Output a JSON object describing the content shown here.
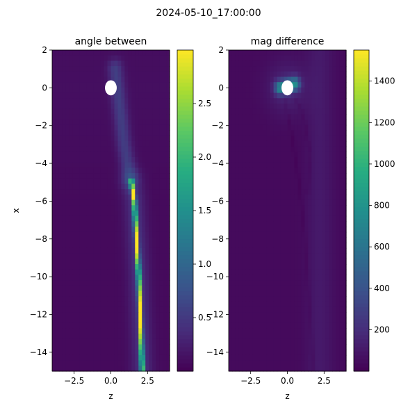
{
  "figure": {
    "suptitle": "2024-05-10_17:00:00"
  },
  "chart_data": [
    {
      "type": "heatmap",
      "title": "angle between",
      "xlabel": "z",
      "ylabel": "x",
      "xlim": [
        -4,
        4
      ],
      "ylim": [
        -15,
        2
      ],
      "xticks": [
        -2.5,
        0.0,
        2.5
      ],
      "xtick_labels": [
        "−2.5",
        "0.0",
        "2.5"
      ],
      "yticks": [
        2,
        0,
        -2,
        -4,
        -6,
        -8,
        -10,
        -12,
        -14
      ],
      "ytick_labels": [
        "2",
        "0",
        "−2",
        "−4",
        "−6",
        "−8",
        "−10",
        "−12",
        "−14"
      ],
      "colormap": "viridis",
      "colorbar": {
        "range": [
          0,
          3.0
        ],
        "ticks": [
          0.5,
          1.0,
          1.5,
          2.0,
          2.5
        ],
        "tick_labels": [
          "0.5",
          "1.0",
          "1.5",
          "2.0",
          "2.5"
        ]
      },
      "masked_region": {
        "center": [
          0.0,
          0.0
        ],
        "radius": 0.4
      },
      "features": [
        {
          "kind": "ridge",
          "points": [
            [
              1.4,
              -5.0
            ],
            [
              1.6,
              -6.0
            ],
            [
              1.75,
              -8.0
            ],
            [
              1.9,
              -10.0
            ],
            [
              2.0,
              -12.0
            ],
            [
              2.1,
              -14.0
            ],
            [
              2.15,
              -15.0
            ]
          ],
          "value": 2.8
        },
        {
          "kind": "diffuse-band",
          "points": [
            [
              0.3,
              1.0
            ],
            [
              0.9,
              -3.0
            ],
            [
              1.3,
              -4.8
            ]
          ],
          "value": 0.9
        }
      ]
    },
    {
      "type": "heatmap",
      "title": "mag difference",
      "xlabel": "z",
      "ylabel": "",
      "xlim": [
        -4,
        4
      ],
      "ylim": [
        -15,
        2
      ],
      "xticks": [
        -2.5,
        0.0,
        2.5
      ],
      "xtick_labels": [
        "−2.5",
        "0.0",
        "2.5"
      ],
      "yticks": [
        2,
        0,
        -2,
        -4,
        -6,
        -8,
        -10,
        -12,
        -14
      ],
      "ytick_labels": [
        "2",
        "0",
        "−2",
        "−4",
        "−6",
        "−8",
        "−10",
        "−12",
        "−14"
      ],
      "colormap": "viridis",
      "colorbar": {
        "range": [
          0,
          1550
        ],
        "ticks": [
          200,
          400,
          600,
          800,
          1000,
          1200,
          1400
        ],
        "tick_labels": [
          "200",
          "400",
          "600",
          "800",
          "1000",
          "1200",
          "1400"
        ]
      },
      "masked_region": {
        "center": [
          0.0,
          0.0
        ],
        "radius": 0.4
      },
      "features": [
        {
          "kind": "hotspot",
          "points": [
            [
              -0.5,
              0.0
            ],
            [
              0.5,
              0.2
            ]
          ],
          "value": 1000
        },
        {
          "kind": "dark-line",
          "points": [
            [
              -0.2,
              -0.5
            ],
            [
              0.3,
              -2.5
            ],
            [
              0.8,
              -5.0
            ],
            [
              1.2,
              -8.0
            ],
            [
              1.8,
              -15.0
            ]
          ],
          "value": 40
        },
        {
          "kind": "dark-line",
          "points": [
            [
              0.4,
              -0.3
            ],
            [
              1.1,
              -1.5
            ],
            [
              1.6,
              -3.5
            ],
            [
              1.4,
              -5.5
            ]
          ],
          "value": 40
        }
      ]
    }
  ]
}
